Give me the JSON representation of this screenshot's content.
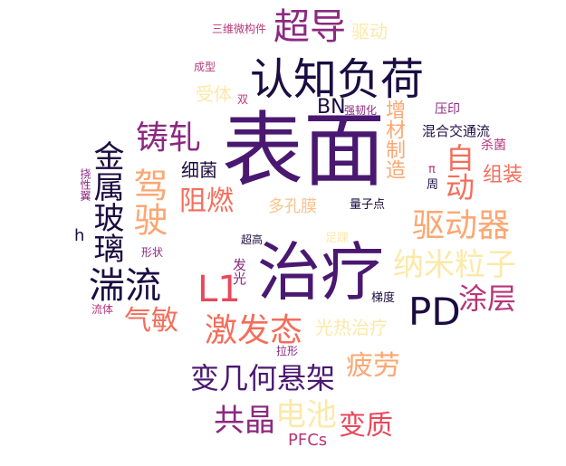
{
  "palette": {
    "dark": "#1b0c41",
    "purple": "#4a1870",
    "magenta": "#8c2981",
    "rose": "#b63679",
    "red": "#e8485c",
    "coral": "#f36e5b",
    "orange": "#fca772",
    "peach": "#fdc28c",
    "cream": "#fce9a8"
  },
  "words": [
    {
      "text": "表面",
      "color": "purple"
    },
    {
      "text": "治疗",
      "color": "purple"
    },
    {
      "text": "认知负荷",
      "color": "dark"
    },
    {
      "text": "超导",
      "color": "magenta"
    },
    {
      "text": "驱动器",
      "color": "orange"
    },
    {
      "text": "纳米粒子",
      "color": "cream"
    },
    {
      "text": "PD",
      "color": "dark"
    },
    {
      "text": "L1",
      "color": "red"
    },
    {
      "text": "湍流",
      "color": "dark"
    },
    {
      "text": "铸轧",
      "color": "magenta"
    },
    {
      "text": "驾驶",
      "color": "orange"
    },
    {
      "text": "金属玻璃",
      "color": "dark"
    },
    {
      "text": "激发态",
      "color": "coral"
    },
    {
      "text": "变几何悬架",
      "color": "purple"
    },
    {
      "text": "共晶",
      "color": "magenta"
    },
    {
      "text": "电池",
      "color": "cream"
    },
    {
      "text": "变质",
      "color": "red"
    },
    {
      "text": "疲劳",
      "color": "orange"
    },
    {
      "text": "涂层",
      "color": "rose"
    },
    {
      "text": "自动",
      "color": "coral"
    },
    {
      "text": "阻燃",
      "color": "coral"
    },
    {
      "text": "气敏",
      "color": "coral"
    },
    {
      "text": "细菌",
      "color": "dark"
    },
    {
      "text": "组装",
      "color": "coral"
    },
    {
      "text": "增材制造",
      "color": "orange"
    },
    {
      "text": "光热治疗",
      "color": "cream"
    },
    {
      "text": "多孔膜",
      "color": "peach"
    },
    {
      "text": "受体",
      "color": "cream"
    },
    {
      "text": "驱动",
      "color": "cream"
    },
    {
      "text": "BN",
      "color": "dark"
    },
    {
      "text": "PFCs",
      "color": "rose"
    },
    {
      "text": "混合交通流",
      "color": "dark"
    },
    {
      "text": "杀菌",
      "color": "rose"
    },
    {
      "text": "压印",
      "color": "magenta"
    },
    {
      "text": "强韧化",
      "color": "magenta"
    },
    {
      "text": "三维微构件",
      "color": "rose"
    },
    {
      "text": "成型",
      "color": "rose"
    },
    {
      "text": "双",
      "color": "rose"
    },
    {
      "text": "π",
      "color": "rose"
    },
    {
      "text": "周",
      "color": "dark"
    },
    {
      "text": "量子点",
      "color": "dark"
    },
    {
      "text": "足踝",
      "color": "cream"
    },
    {
      "text": "超高",
      "color": "dark"
    },
    {
      "text": "发光",
      "color": "magenta"
    },
    {
      "text": "梯度",
      "color": "dark"
    },
    {
      "text": "拉形",
      "color": "magenta"
    },
    {
      "text": "形状",
      "color": "magenta"
    },
    {
      "text": "流体",
      "color": "rose"
    },
    {
      "text": "h",
      "color": "dark"
    },
    {
      "text": "挠性翼",
      "color": "magenta"
    }
  ]
}
